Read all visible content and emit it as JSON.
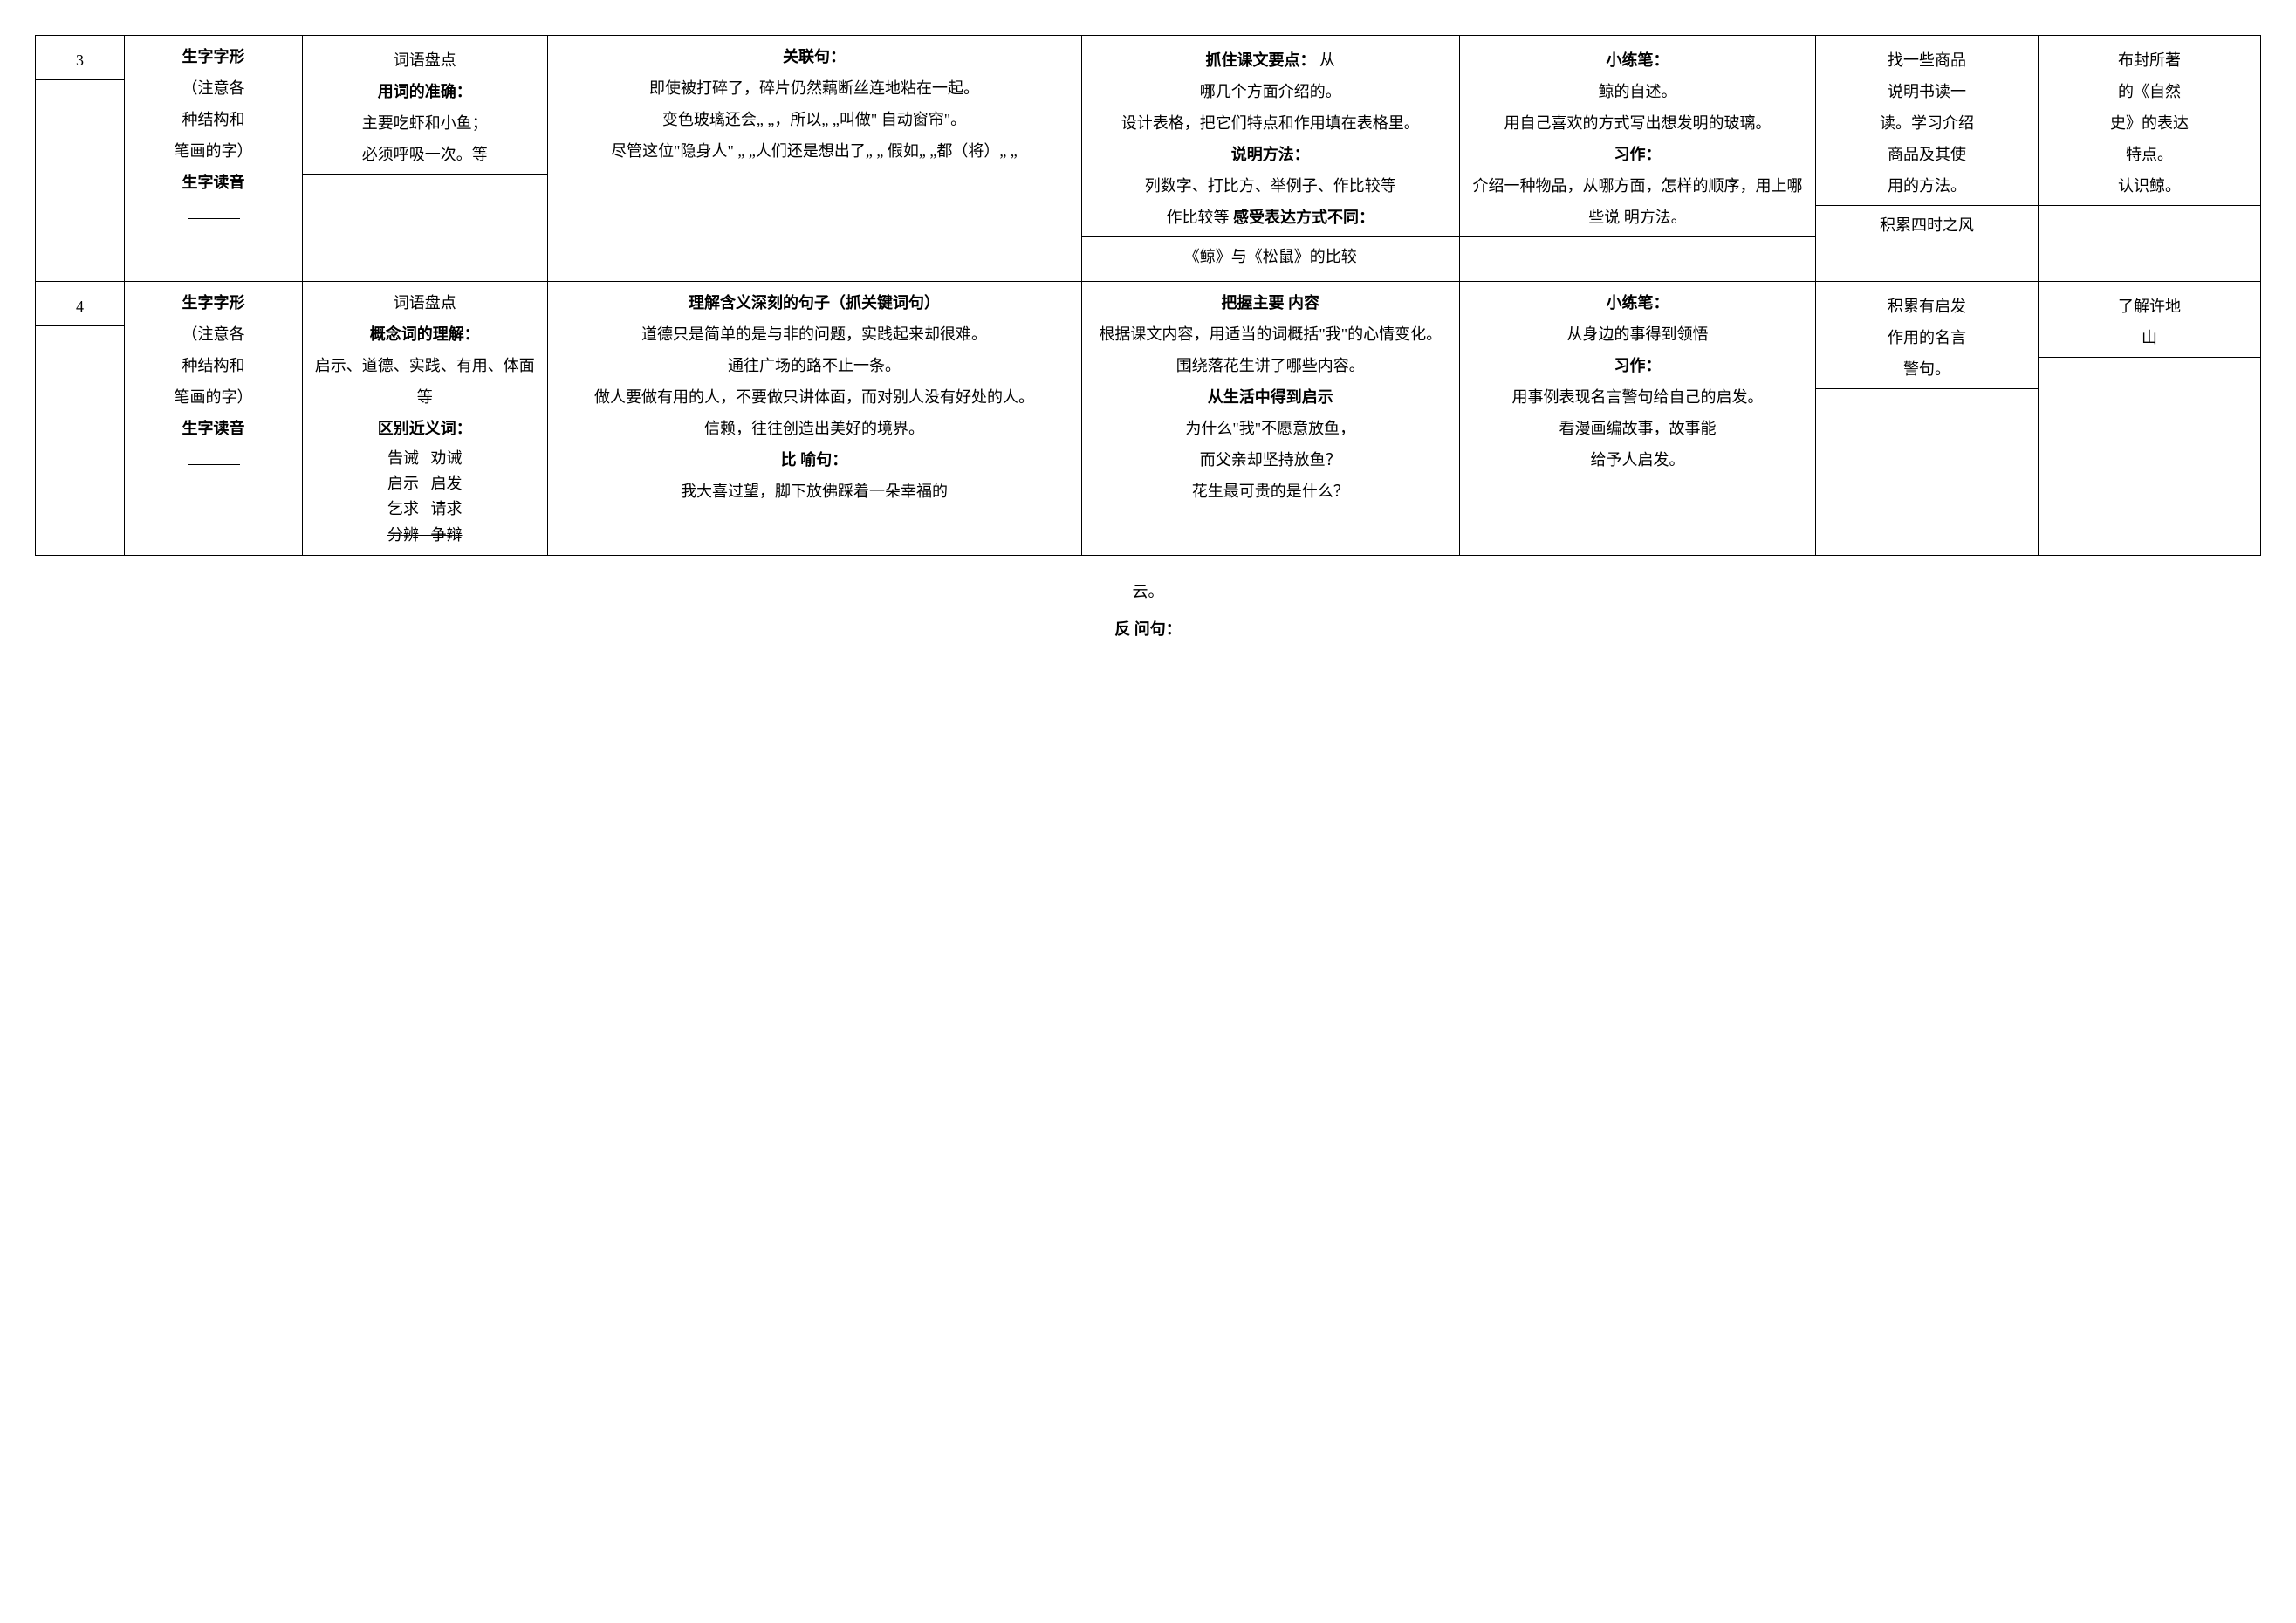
{
  "rows": [
    {
      "num": "3",
      "col2": {
        "lines": [
          {
            "text": "生字字形",
            "bold": true
          },
          {
            "text": "（注意各"
          },
          {
            "text": "种结构和"
          },
          {
            "text": "笔画的字）"
          },
          {
            "text": "生字读音",
            "bold": true
          }
        ],
        "blank_after": true
      },
      "col3": {
        "segments": [
          {
            "lines": [
              {
                "text": "词语盘点"
              },
              {
                "text": "用词的准确：",
                "bold": true
              },
              {
                "text": "主要吃虾和小鱼；"
              },
              {
                "text": "必须呼吸一次。等"
              }
            ]
          },
          {
            "lines": []
          }
        ]
      },
      "col4": {
        "segments": [
          {
            "lines": [
              {
                "text": "关联句：",
                "bold": true
              },
              {
                "text": "即使被打碎了，碎片仍然藕断丝连地粘在一起。"
              },
              {
                "text": "变色玻璃还会„  „，所以„  „叫做\" 自动窗帘\"。"
              },
              {
                "text": "尽管这位\"隐身人\" „  „人们还是想出了„ „     假如„  „都（将）„  „"
              }
            ]
          }
        ]
      },
      "col5": {
        "segments": [
          {
            "lines": [
              {
                "text": "抓住课文要点：   从",
                "bold_prefix": "抓住课文要点："
              },
              {
                "text": "哪几个方面介绍的。"
              },
              {
                "text": "设计表格，把它们特点和作用填在表格里。"
              },
              {
                "text": "说明方法：",
                "bold": true
              },
              {
                "text": "列数字、打比方、举例子、作比较等   "
              },
              {
                "html": "作比较等   <span class='bold'>感受表达方式不同：</span>"
              }
            ]
          },
          {
            "lines": [
              {
                "text": "《鲸》与《松鼠》的比较"
              }
            ]
          }
        ]
      },
      "col6": {
        "segments": [
          {
            "lines": [
              {
                "text": "小练笔：",
                "bold": true
              },
              {
                "text": "鲸的自述。"
              },
              {
                "text": "用自己喜欢的方式写出想发明的玻璃。"
              },
              {
                "text": "习作：",
                "bold": true
              },
              {
                "text": "介绍一种物品，从哪方面，怎样的顺序，用上哪些说 明方法。"
              }
            ]
          },
          {
            "lines": []
          }
        ]
      },
      "col7": {
        "segments": [
          {
            "lines": [
              {
                "text": "找一些商品"
              },
              {
                "text": "说明书读一"
              },
              {
                "text": "读。学习介绍"
              },
              {
                "text": "商品及其使"
              },
              {
                "text": "用的方法。"
              }
            ]
          },
          {
            "lines": [
              {
                "text": "积累四时之风"
              }
            ]
          }
        ]
      },
      "col8": {
        "segments": [
          {
            "lines": [
              {
                "text": "布封所著"
              },
              {
                "text": "的《自然"
              },
              {
                "text": "史》的表达"
              },
              {
                "text": "特点。"
              },
              {
                "text": "认识鲸。"
              }
            ]
          },
          {
            "lines": []
          }
        ]
      }
    },
    {
      "num": "4",
      "col2": {
        "lines": [
          {
            "text": "生字字形",
            "bold": true
          },
          {
            "text": "（注意各"
          },
          {
            "text": "种结构和"
          },
          {
            "text": "笔画的字）"
          },
          {
            "text": "生字读音",
            "bold": true
          }
        ],
        "blank_after": true
      },
      "col3": {
        "segments": [
          {
            "lines": [
              {
                "text": "词语盘点"
              },
              {
                "text": "概念词的理解：",
                "bold": true
              },
              {
                "text": "启示、道德、实践、有用、体面等"
              },
              {
                "text": "区别近义词：",
                "bold": true
              },
              {
                "pair": [
                  "告诫",
                  "劝诫"
                ]
              },
              {
                "pair": [
                  "启示",
                  "启发"
                ]
              },
              {
                "pair": [
                  "乞求",
                  "请求"
                ]
              },
              {
                "pair_strike": [
                  "分辨",
                  "争辩"
                ]
              }
            ]
          }
        ]
      },
      "col4": {
        "segments": [
          {
            "lines": [
              {
                "text": "理解含义深刻的句子（抓关键词句）",
                "bold": true
              },
              {
                "text": "道德只是简单的是与非的问题，实践起来却很难。"
              },
              {
                "text": "通往广场的路不止一条。"
              },
              {
                "text": "做人要做有用的人，不要做只讲体面，而对别人没有好处的人。"
              },
              {
                "text": "信赖，往往创造出美好的境界。"
              },
              {
                "text": "比 喻句：",
                "bold": true
              },
              {
                "text": "我大喜过望，脚下放佛踩着一朵幸福的"
              }
            ]
          }
        ]
      },
      "col5": {
        "segments": [
          {
            "lines": [
              {
                "text": "把握主要 内容",
                "bold": true
              },
              {
                "text": "根据课文内容，用适当的词概括\"我\"的心情变化。"
              },
              {
                "text": "围绕落花生讲了哪些内容。"
              },
              {
                "text": "从生活中得到启示",
                "bold": true
              },
              {
                "text": "为什么\"我\"不愿意放鱼，"
              },
              {
                "text": "而父亲却坚持放鱼？"
              },
              {
                "text": "花生最可贵的是什么？"
              }
            ]
          }
        ]
      },
      "col6": {
        "segments": [
          {
            "lines": [
              {
                "text": "小练笔：",
                "bold": true
              },
              {
                "text": "从身边的事得到领悟"
              },
              {
                "text": "习作：",
                "bold": true
              },
              {
                "text": "用事例表现名言警句给自己的启发。"
              },
              {
                "text": "看漫画编故事，故事能"
              },
              {
                "text": "给予人启发。"
              }
            ]
          }
        ]
      },
      "col7": {
        "segments": [
          {
            "lines": [
              {
                "text": "积累有启发"
              },
              {
                "text": "作用的名言"
              },
              {
                "text": "警句。"
              }
            ]
          },
          {
            "lines": []
          }
        ]
      },
      "col8": {
        "segments": [
          {
            "lines": [
              {
                "text": "了解许地"
              },
              {
                "text": "山"
              }
            ]
          },
          {
            "lines": []
          }
        ]
      }
    }
  ],
  "overflow": {
    "line1": "云。",
    "line2": "反 问句："
  }
}
